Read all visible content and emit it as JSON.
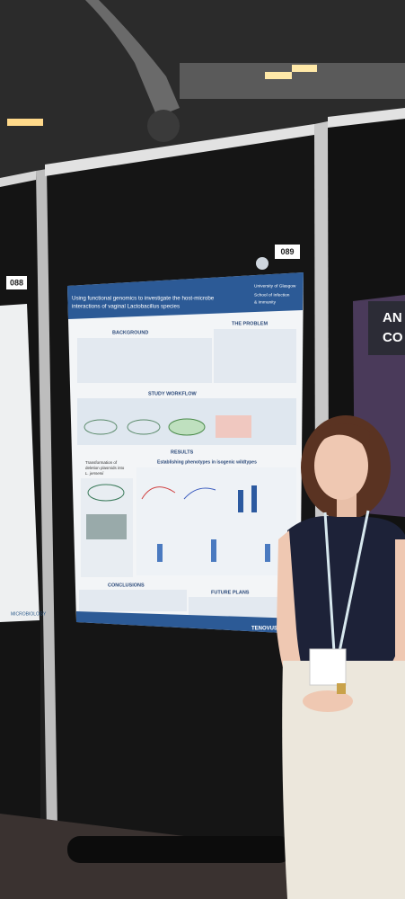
{
  "board_numbers": [
    "088",
    "089"
  ],
  "poster": {
    "title_lines": [
      "Using functional genomics to investigate the host-microbe",
      "interactions of vaginal Lactobacillus species"
    ],
    "institution": "University of Glasgow",
    "school_lines": [
      "School of Infection",
      "& Immunity"
    ],
    "sections": {
      "background": "BACKGROUND",
      "problem": "THE PROBLEM",
      "workflow": "STUDY WORKFLOW",
      "results": "RESULTS",
      "conclusions": "CONCLUSIONS",
      "future": "FUTURE PLANS"
    },
    "results_heading": "Establishing phenotypes in isogenic wildtypes",
    "transformation_lines": [
      "Transformation of",
      "deletion plasmids into",
      "L. jensenii"
    ],
    "sponsor": "TENOVUS"
  },
  "right_poster_lines": [
    "AN",
    "CO"
  ],
  "left_poster_footer": "MICROBIOLOGY"
}
